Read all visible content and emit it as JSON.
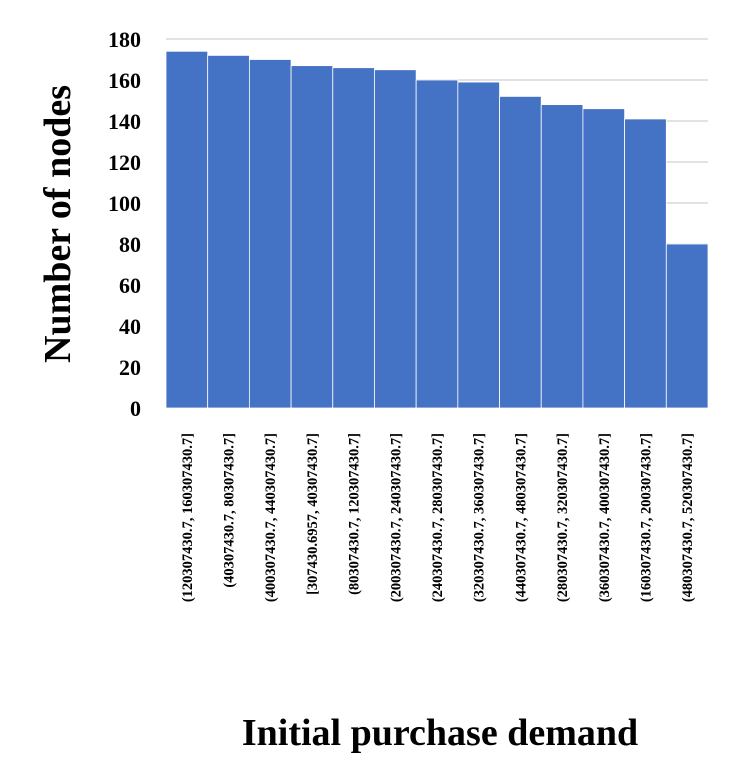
{
  "chart_data": {
    "type": "bar",
    "title": "",
    "xlabel": "Initial purchase demand",
    "ylabel": "Number of nodes",
    "ylim": [
      0,
      180
    ],
    "yticks": [
      "0",
      "20",
      "40",
      "60",
      "80",
      "100",
      "120",
      "140",
      "160",
      "180"
    ],
    "grid": true,
    "categories": [
      "(120307430.7, 160307430.7]",
      "(40307430.7, 80307430.7]",
      "(400307430.7, 440307430.7]",
      "[307430.6957, 40307430.7]",
      "(80307430.7, 120307430.7]",
      "(200307430.7, 240307430.7]",
      "(240307430.7, 280307430.7]",
      "(320307430.7, 360307430.7]",
      "(440307430.7, 480307430.7]",
      "(280307430.7, 320307430.7]",
      "(360307430.7, 400307430.7]",
      "(160307430.7, 200307430.7]",
      "(480307430.7, 520307430.7]"
    ],
    "values": [
      174,
      172,
      170,
      167,
      166,
      165,
      160,
      159,
      152,
      148,
      146,
      141,
      80
    ],
    "colors": {
      "bar": "#4472C4",
      "bar_edge": "#ffffff",
      "grid": "#d9d9d9"
    }
  }
}
